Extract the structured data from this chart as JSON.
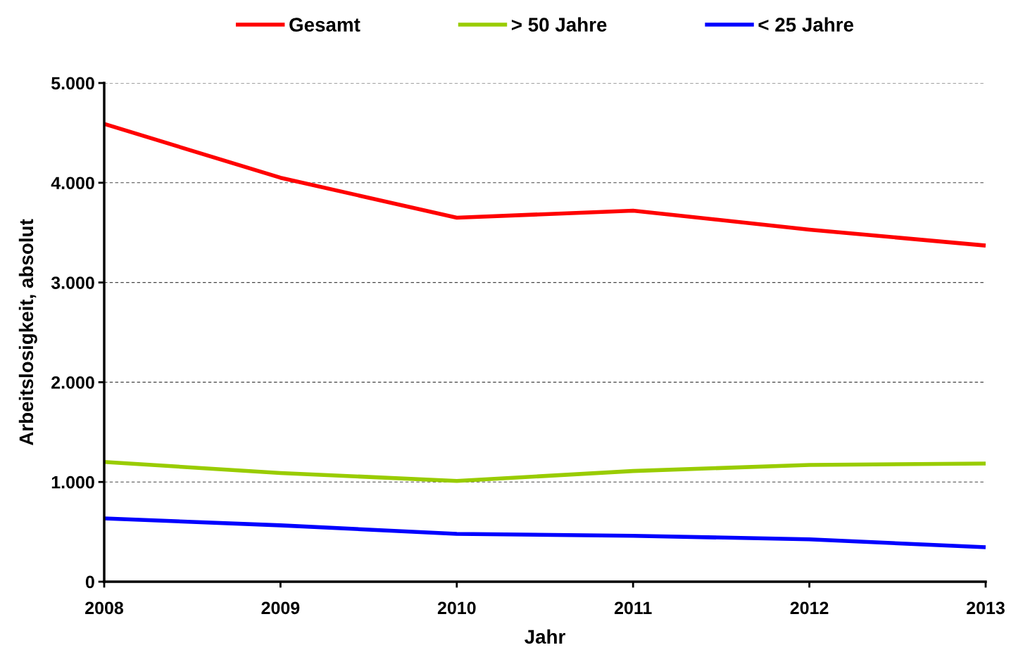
{
  "chart_data": {
    "type": "line",
    "xlabel": "Jahr",
    "ylabel": "Arbeitslosigkeit, absolut",
    "x": [
      2008,
      2009,
      2010,
      2011,
      2012,
      2013
    ],
    "series": [
      {
        "name": "Gesamt",
        "color": "#ff0000",
        "values": [
          4590,
          4050,
          3650,
          3720,
          3530,
          3370
        ]
      },
      {
        "name": "> 50 Jahre",
        "color": "#99cc00",
        "values": [
          1200,
          1090,
          1010,
          1110,
          1170,
          1185
        ]
      },
      {
        "name": "< 25 Jahre",
        "color": "#0000ff",
        "values": [
          635,
          565,
          480,
          460,
          425,
          345
        ]
      }
    ],
    "xlim": [
      2008,
      2013
    ],
    "xticks": [
      2008,
      2009,
      2010,
      2011,
      2012,
      2013
    ],
    "ylim": [
      0,
      5000
    ],
    "yticks": [
      {
        "value": 0,
        "label": "0"
      },
      {
        "value": 1000,
        "label": "1.000"
      },
      {
        "value": 2000,
        "label": "2.000"
      },
      {
        "value": 3000,
        "label": "3.000"
      },
      {
        "value": 4000,
        "label": "4.000"
      },
      {
        "value": 5000,
        "label": "5.000"
      }
    ],
    "grid": "y",
    "legend": "top",
    "marker": "none",
    "line_style": "solid"
  }
}
